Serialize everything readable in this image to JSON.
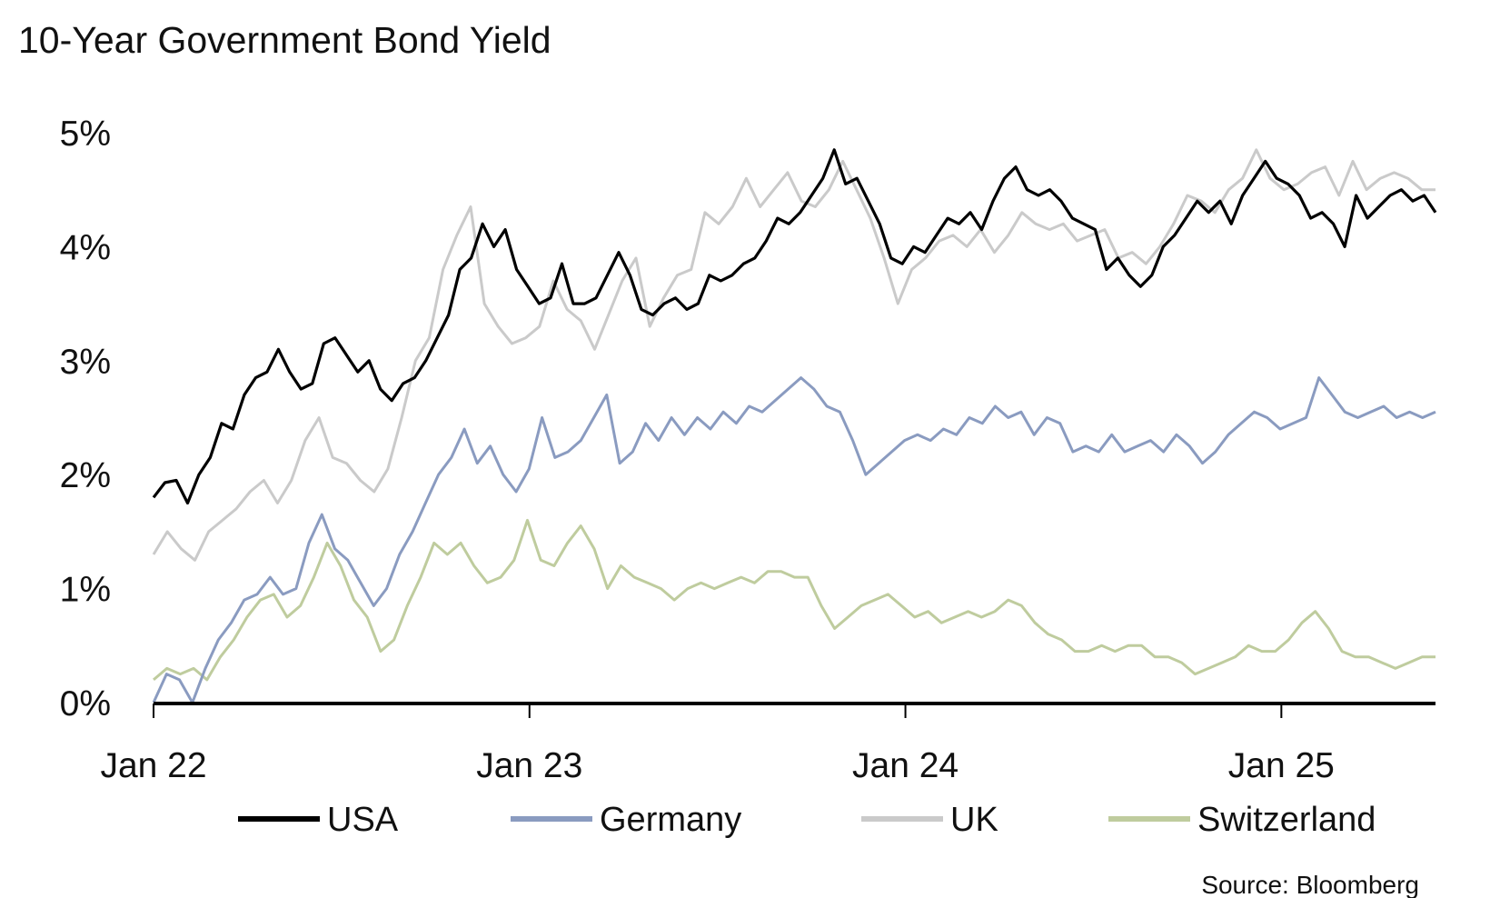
{
  "chart_data": {
    "type": "line",
    "title": "10-Year Government Bond Yield",
    "xlabel": "",
    "ylabel": "",
    "x_range": [
      2022.0,
      2025.41
    ],
    "x_ticks": [
      {
        "value": 2022,
        "label": "Jan 22"
      },
      {
        "value": 2023,
        "label": "Jan 23"
      },
      {
        "value": 2024,
        "label": "Jan 24"
      },
      {
        "value": 2025,
        "label": "Jan 25"
      }
    ],
    "ylim": [
      0,
      5
    ],
    "y_ticks": [
      {
        "value": 0,
        "label": "0%"
      },
      {
        "value": 1,
        "label": "1%"
      },
      {
        "value": 2,
        "label": "2%"
      },
      {
        "value": 3,
        "label": "3%"
      },
      {
        "value": 4,
        "label": "4%"
      },
      {
        "value": 5,
        "label": "5%"
      }
    ],
    "grid": false,
    "legend_position": "bottom",
    "source": "Source: Bloomberg",
    "series": [
      {
        "name": "USA",
        "color": "#000000",
        "values": [
          1.8,
          1.93,
          1.95,
          1.75,
          2.0,
          2.15,
          2.45,
          2.4,
          2.7,
          2.85,
          2.9,
          3.1,
          2.9,
          2.75,
          2.8,
          3.15,
          3.2,
          3.05,
          2.9,
          3.0,
          2.75,
          2.65,
          2.8,
          2.85,
          3.0,
          3.2,
          3.4,
          3.8,
          3.9,
          4.2,
          4.0,
          4.15,
          3.8,
          3.65,
          3.5,
          3.55,
          3.85,
          3.5,
          3.5,
          3.55,
          3.75,
          3.95,
          3.75,
          3.45,
          3.4,
          3.5,
          3.55,
          3.45,
          3.5,
          3.75,
          3.7,
          3.75,
          3.85,
          3.9,
          4.05,
          4.25,
          4.2,
          4.3,
          4.45,
          4.6,
          4.85,
          4.55,
          4.6,
          4.4,
          4.2,
          3.9,
          3.85,
          4.0,
          3.95,
          4.1,
          4.25,
          4.2,
          4.3,
          4.15,
          4.4,
          4.6,
          4.7,
          4.5,
          4.45,
          4.5,
          4.4,
          4.25,
          4.2,
          4.15,
          3.8,
          3.9,
          3.75,
          3.65,
          3.75,
          4.0,
          4.1,
          4.25,
          4.4,
          4.3,
          4.4,
          4.2,
          4.45,
          4.6,
          4.75,
          4.6,
          4.55,
          4.45,
          4.25,
          4.3,
          4.2,
          4.0,
          4.45,
          4.25,
          4.35,
          4.45,
          4.5,
          4.4,
          4.45,
          4.3
        ]
      },
      {
        "name": "Germany",
        "color": "#8a9bc0",
        "values": [
          0.0,
          0.25,
          0.2,
          0.0,
          0.3,
          0.55,
          0.7,
          0.9,
          0.95,
          1.1,
          0.95,
          1.0,
          1.4,
          1.65,
          1.35,
          1.25,
          1.05,
          0.85,
          1.0,
          1.3,
          1.5,
          1.75,
          2.0,
          2.15,
          2.4,
          2.1,
          2.25,
          2.0,
          1.85,
          2.05,
          2.5,
          2.15,
          2.2,
          2.3,
          2.5,
          2.7,
          2.1,
          2.2,
          2.45,
          2.3,
          2.5,
          2.35,
          2.5,
          2.4,
          2.55,
          2.45,
          2.6,
          2.55,
          2.65,
          2.75,
          2.85,
          2.75,
          2.6,
          2.55,
          2.3,
          2.0,
          2.1,
          2.2,
          2.3,
          2.35,
          2.3,
          2.4,
          2.35,
          2.5,
          2.45,
          2.6,
          2.5,
          2.55,
          2.35,
          2.5,
          2.45,
          2.2,
          2.25,
          2.2,
          2.35,
          2.2,
          2.25,
          2.3,
          2.2,
          2.35,
          2.25,
          2.1,
          2.2,
          2.35,
          2.45,
          2.55,
          2.5,
          2.4,
          2.45,
          2.5,
          2.85,
          2.7,
          2.55,
          2.5,
          2.55,
          2.6,
          2.5,
          2.55,
          2.5,
          2.55
        ]
      },
      {
        "name": "UK",
        "color": "#cacaca",
        "values": [
          1.3,
          1.5,
          1.35,
          1.25,
          1.5,
          1.6,
          1.7,
          1.85,
          1.95,
          1.75,
          1.95,
          2.3,
          2.5,
          2.15,
          2.1,
          1.95,
          1.85,
          2.05,
          2.5,
          3.0,
          3.2,
          3.8,
          4.1,
          4.35,
          3.5,
          3.3,
          3.15,
          3.2,
          3.3,
          3.7,
          3.45,
          3.35,
          3.1,
          3.4,
          3.7,
          3.9,
          3.3,
          3.55,
          3.75,
          3.8,
          4.3,
          4.2,
          4.35,
          4.6,
          4.35,
          4.5,
          4.65,
          4.4,
          4.35,
          4.5,
          4.75,
          4.5,
          4.25,
          3.9,
          3.5,
          3.8,
          3.9,
          4.05,
          4.1,
          4.0,
          4.15,
          3.95,
          4.1,
          4.3,
          4.2,
          4.15,
          4.2,
          4.05,
          4.1,
          4.15,
          3.9,
          3.95,
          3.85,
          4.0,
          4.2,
          4.45,
          4.4,
          4.3,
          4.5,
          4.6,
          4.85,
          4.6,
          4.5,
          4.55,
          4.65,
          4.7,
          4.45,
          4.75,
          4.5,
          4.6,
          4.65,
          4.6,
          4.5,
          4.5
        ]
      },
      {
        "name": "Switzerland",
        "color": "#bfcc9e",
        "values": [
          0.2,
          0.3,
          0.25,
          0.3,
          0.2,
          0.4,
          0.55,
          0.75,
          0.9,
          0.95,
          0.75,
          0.85,
          1.1,
          1.4,
          1.2,
          0.9,
          0.75,
          0.45,
          0.55,
          0.85,
          1.1,
          1.4,
          1.3,
          1.4,
          1.2,
          1.05,
          1.1,
          1.25,
          1.6,
          1.25,
          1.2,
          1.4,
          1.55,
          1.35,
          1.0,
          1.2,
          1.1,
          1.05,
          1.0,
          0.9,
          1.0,
          1.05,
          1.0,
          1.05,
          1.1,
          1.05,
          1.15,
          1.15,
          1.1,
          1.1,
          0.85,
          0.65,
          0.75,
          0.85,
          0.9,
          0.95,
          0.85,
          0.75,
          0.8,
          0.7,
          0.75,
          0.8,
          0.75,
          0.8,
          0.9,
          0.85,
          0.7,
          0.6,
          0.55,
          0.45,
          0.45,
          0.5,
          0.45,
          0.5,
          0.5,
          0.4,
          0.4,
          0.35,
          0.25,
          0.3,
          0.35,
          0.4,
          0.5,
          0.45,
          0.45,
          0.55,
          0.7,
          0.8,
          0.65,
          0.45,
          0.4,
          0.4,
          0.35,
          0.3,
          0.35,
          0.4,
          0.4
        ]
      }
    ]
  }
}
